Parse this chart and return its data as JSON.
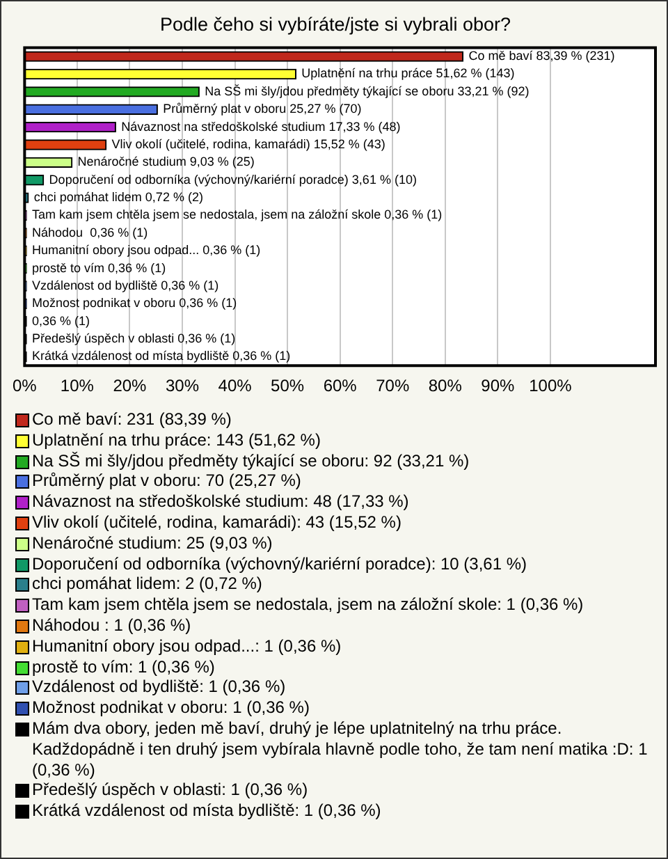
{
  "chart_data": {
    "type": "bar",
    "orientation": "horizontal",
    "title": "Podle čeho si vybíráte/jste si vybrali obor?",
    "categories": [
      null,
      null,
      null,
      null,
      null,
      null,
      null,
      null,
      null,
      null,
      null,
      null,
      null,
      null,
      null,
      null,
      null,
      null
    ],
    "values": [
      83.39,
      51.62,
      33.21,
      25.27,
      17.33,
      15.52,
      9.03,
      3.61,
      0.72,
      0.36,
      0.36,
      0.36,
      0.36,
      0.36,
      0.36,
      0.36,
      0.36,
      0.36
    ],
    "value_labels": [
      "Co mě baví 83,39 % (231)",
      "Uplatnění na trhu práce 51,62 % (143)",
      "Na SŠ mi šly/jdou předměty týkající se oboru 33,21 % (92)",
      "Průměrný plat v oboru 25,27 % (70)",
      "Návaznost na středoškolské studium 17,33 % (48)",
      "Vliv okolí (učitelé, rodina, kamarádi) 15,52 % (43)",
      "Nenáročné studium 9,03 % (25)",
      "Doporučení od odborníka (výchovný/kariérní poradce) 3,61 % (10)",
      "chci pomáhat lidem 0,72 % (2)",
      "Tam kam jsem chtěla jsem se nedostala, jsem na záložní skole 0,36 % (1)",
      "Náhodou  0,36 % (1)",
      "Humanitní obory jsou odpad... 0,36 % (1)",
      "prostě to vím 0,36 % (1)",
      "Vzdálenost od bydliště 0,36 % (1)",
      "Možnost podnikat v oboru 0,36 % (1)",
      "0,36 % (1)",
      "Předešlý úspěch v oblasti 0,36 % (1)",
      "Krátká vzdálenost od místa bydliště 0,36 % (1)"
    ],
    "colors": [
      "#c0281c",
      "#ffff33",
      "#22aa22",
      "#4a6fe0",
      "#b020c8",
      "#e04010",
      "#ccff88",
      "#119966",
      "#2a7f8c",
      "#c060c0",
      "#e07810",
      "#e0b010",
      "#44dd33",
      "#6f9fe8",
      "#3050b0",
      "#000000",
      "#000000",
      "#000000"
    ],
    "xlim": [
      0,
      120
    ],
    "xticks": [
      {
        "value": 0,
        "label": "0%"
      },
      {
        "value": 10,
        "label": "10%"
      },
      {
        "value": 20,
        "label": "20%"
      },
      {
        "value": 30,
        "label": "30%"
      },
      {
        "value": 40,
        "label": "40%"
      },
      {
        "value": 50,
        "label": "50%"
      },
      {
        "value": 60,
        "label": "60%"
      },
      {
        "value": 70,
        "label": "70%"
      },
      {
        "value": 80,
        "label": "80%"
      },
      {
        "value": 90,
        "label": "90%"
      },
      {
        "value": 100,
        "label": "100%"
      }
    ],
    "grid": "x",
    "tick_labels": "x",
    "annotations": [
      "Co mě baví: 231 (83,39 %)",
      "Uplatnění na trhu práce: 143 (51,62 %)",
      "Na SŠ mi šly/jdou předměty týkající se oboru: 92 (33,21 %)",
      "Průměrný plat v oboru: 70 (25,27 %)",
      "Návaznost na středoškolské studium: 48 (17,33 %)",
      "Vliv okolí (učitelé, rodina, kamarádi): 43 (15,52 %)",
      "Nenáročné studium: 25 (9,03 %)",
      "Doporučení od odborníka (výchovný/kariérní poradce): 10 (3,61 %)",
      "chci pomáhat lidem: 2 (0,72 %)",
      "Tam kam jsem chtěla jsem se nedostala, jsem na záložní skole: 1 (0,36 %)",
      "Náhodou : 1 (0,36 %)",
      "Humanitní obory jsou odpad...: 1 (0,36 %)",
      "prostě to vím: 1 (0,36 %)",
      "Vzdálenost od bydliště: 1 (0,36 %)",
      "Možnost podnikat v oboru: 1 (0,36 %)",
      "Mám dva obory, jeden mě baví, druhý je lépe uplatnitelný na trhu práce. Kadždopádně i ten druhý jsem vybírala hlavně podle toho, že tam není matika :D: 1 (0,36 %)",
      "Předešlý úspěch v oblasti: 1 (0,36 %)",
      "Krátká vzdálenost od místa bydliště: 1 (0,36 %)"
    ]
  }
}
